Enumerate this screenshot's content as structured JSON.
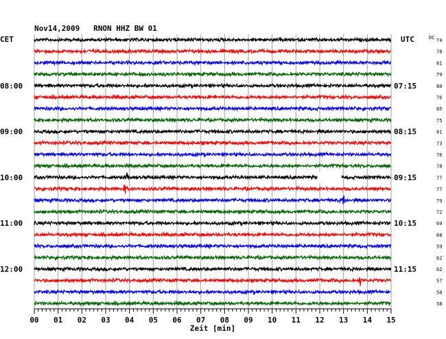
{
  "header": {
    "title": "Nov14,2009   RNON HHZ BW 01",
    "left_zone": "CET",
    "right_zone": "UTC",
    "dc_label": "DC"
  },
  "chart_data": {
    "type": "line",
    "title": "Nov14,2009   RNON HHZ BW 01",
    "xlabel": "Zeit [min]",
    "xlim": [
      0,
      15
    ],
    "x_ticks": [
      "00",
      "01",
      "02",
      "03",
      "04",
      "05",
      "06",
      "07",
      "08",
      "09",
      "10",
      "11",
      "12",
      "13",
      "14",
      "15"
    ],
    "trace_colors": [
      "#000000",
      "#ff0000",
      "#0000ff",
      "#006600"
    ],
    "left_time_labels": [
      "08:00",
      "09:00",
      "10:00",
      "11:00",
      "12:00"
    ],
    "right_time_labels": [
      "07:15",
      "08:15",
      "09:15",
      "10:15",
      "11:15"
    ],
    "dc_values": [
      "74",
      "78",
      "81",
      "79",
      "80",
      "76",
      "85",
      "75",
      "81",
      "73",
      "76",
      "78",
      "77",
      "77",
      "79",
      "72",
      "69",
      "68",
      "59",
      "62",
      "62",
      "57",
      "58",
      "58"
    ],
    "gap": {
      "trace_index": 12,
      "x_start": 11.9,
      "x_end": 12.9
    },
    "events": [
      {
        "trace_index": 12,
        "x": 3.9
      },
      {
        "trace_index": 13,
        "x": 3.8
      },
      {
        "trace_index": 14,
        "x": 13.0
      },
      {
        "trace_index": 21,
        "x": 13.7
      }
    ]
  }
}
